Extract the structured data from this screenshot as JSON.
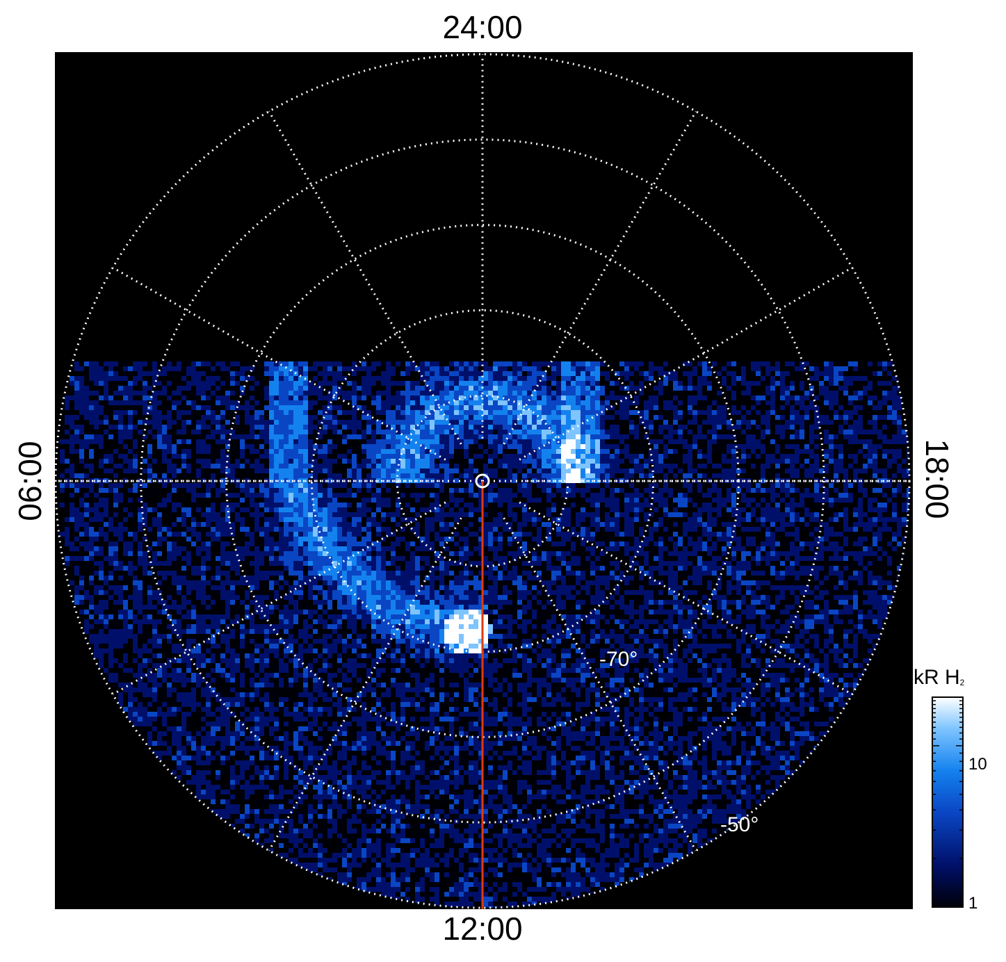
{
  "chart_data": {
    "type": "heatmap",
    "projection": "polar",
    "local_time_labels": {
      "top": "24:00",
      "right": "18:00",
      "bottom": "12:00",
      "left": "06:00"
    },
    "latitude_labels": [
      "-70°",
      "-50°"
    ],
    "latitude_circles_deg": [
      -80,
      -70,
      -60,
      -50,
      -40
    ],
    "local_time_meridians_h": [
      0,
      2,
      4,
      6,
      8,
      10,
      12,
      14,
      16,
      18,
      20,
      22
    ],
    "grid": true,
    "grid_style": "dotted white",
    "background": "#000000",
    "colorbar": {
      "title": "kR H",
      "title_subscript": "2",
      "scale": "log",
      "range": [
        1,
        20
      ],
      "ticks": [
        {
          "value": 1,
          "label": "1"
        },
        {
          "value": 10,
          "label": "10"
        }
      ],
      "colors": [
        "#000008",
        "#00106a",
        "#0a46c4",
        "#1482ee",
        "#7ec4ff",
        "#ffffff"
      ]
    },
    "features": {
      "main_oval": "bright emission ring, ~-80° to -72° latitude, dusk-to-dawn across midnight side",
      "dawn_arc": "bright arc from ~05 LT down to ~11 LT near -70°",
      "data_coverage": "no data poleward of ~-78° on nightside beyond local time 21–03 cutout"
    },
    "marker_line": {
      "color": "#e03a10",
      "local_time": "12:00",
      "from": "pole",
      "to": "edge"
    },
    "pole_marker": "ring"
  }
}
